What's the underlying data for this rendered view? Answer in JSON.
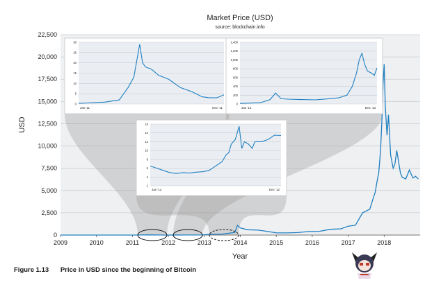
{
  "chart_data": {
    "type": "line",
    "title": "Market Price (USD)",
    "subtitle": "source: blockchain.info",
    "xlabel": "Year",
    "ylabel": "USD",
    "xlim": [
      2009,
      2019
    ],
    "ylim": [
      0,
      22500
    ],
    "yticks": [
      "0",
      "2,500",
      "5,000",
      "7,500",
      "10,000",
      "12,500",
      "15,000",
      "17,500",
      "20,000",
      "22,500"
    ],
    "xticks": [
      "2009",
      "2010",
      "2011",
      "2012",
      "2013",
      "2014",
      "2015",
      "2016",
      "2017",
      "2018"
    ],
    "grid": true,
    "color": "#1f7fc1",
    "series": [
      {
        "x": [
          2009.0,
          2010.5,
          2011.0,
          2011.45,
          2011.9,
          2012.5,
          2012.95,
          2013.2,
          2013.5,
          2013.85,
          2013.92,
          2014.0,
          2014.2,
          2014.5,
          2014.8,
          2015.0,
          2015.3,
          2015.6,
          2015.9,
          2016.2,
          2016.5,
          2016.8,
          2017.0,
          2017.2,
          2017.4,
          2017.5,
          2017.6,
          2017.7,
          2017.75,
          2017.8,
          2017.85,
          2017.9,
          2017.95,
          2017.97,
          2018.0,
          2018.03,
          2018.08,
          2018.12,
          2018.18,
          2018.25,
          2018.3,
          2018.35,
          2018.45,
          2018.5,
          2018.6,
          2018.7,
          2018.8,
          2018.87,
          2018.95
        ],
        "y": [
          0,
          0,
          1,
          20,
          3,
          8,
          13,
          100,
          110,
          300,
          1100,
          800,
          600,
          550,
          380,
          250,
          240,
          280,
          400,
          420,
          650,
          700,
          1000,
          1100,
          2500,
          2700,
          2900,
          4200,
          4800,
          6000,
          7000,
          9500,
          14000,
          17000,
          19200,
          14500,
          11200,
          13500,
          9000,
          7500,
          8000,
          9500,
          7000,
          6500,
          6300,
          7300,
          6400,
          6600,
          6300
        ]
      }
    ],
    "insets": [
      {
        "type": "line",
        "start_label": "Jan '11",
        "end_label": "Dec '11",
        "yticks": [
          "0",
          "5",
          "10",
          "15",
          "20",
          "25",
          "30"
        ],
        "ylim": [
          0,
          30
        ],
        "x": [
          0,
          0.18,
          0.28,
          0.34,
          0.38,
          0.42,
          0.44,
          0.46,
          0.5,
          0.55,
          0.62,
          0.7,
          0.78,
          0.85,
          0.9,
          0.95,
          1.0
        ],
        "y": [
          0.3,
          0.9,
          2,
          8,
          13,
          29,
          20,
          18,
          17,
          14,
          12,
          8,
          6,
          3.5,
          3,
          3,
          4.5
        ]
      },
      {
        "type": "line",
        "start_label": "Jan '13",
        "end_label": "Dec '13",
        "yticks": [
          "0",
          "200",
          "400",
          "600",
          "800",
          "1,000",
          "1,200",
          "1,400"
        ],
        "ylim": [
          0,
          1400
        ],
        "x": [
          0,
          0.15,
          0.22,
          0.26,
          0.3,
          0.35,
          0.45,
          0.55,
          0.65,
          0.72,
          0.78,
          0.82,
          0.85,
          0.87,
          0.89,
          0.91,
          0.93,
          0.96,
          0.98,
          1.0
        ],
        "y": [
          13,
          30,
          100,
          250,
          120,
          110,
          100,
          95,
          120,
          140,
          200,
          400,
          700,
          1000,
          1150,
          900,
          750,
          700,
          650,
          820
        ]
      },
      {
        "type": "line",
        "start_label": "Jan '12",
        "end_label": "Dec '12",
        "yticks": [
          "2",
          "4",
          "6",
          "8",
          "10",
          "12",
          "14",
          "16"
        ],
        "ylim": [
          2,
          16
        ],
        "x": [
          0,
          0.05,
          0.1,
          0.15,
          0.2,
          0.25,
          0.3,
          0.35,
          0.4,
          0.45,
          0.5,
          0.55,
          0.58,
          0.6,
          0.62,
          0.65,
          0.68,
          0.7,
          0.72,
          0.75,
          0.78,
          0.8,
          0.85,
          0.9,
          0.95,
          1.0
        ],
        "y": [
          6.5,
          6,
          5.5,
          5,
          4.8,
          5,
          4.9,
          5.1,
          5.2,
          5.5,
          6.5,
          7.5,
          9,
          9.5,
          11.5,
          12.5,
          15.5,
          10.5,
          12,
          11.5,
          10.5,
          12,
          12,
          12.5,
          13.5,
          13.4
        ]
      }
    ]
  },
  "caption": {
    "number": "Figure 1.13",
    "text": "Price in USD since the beginning of Bitcoin"
  }
}
